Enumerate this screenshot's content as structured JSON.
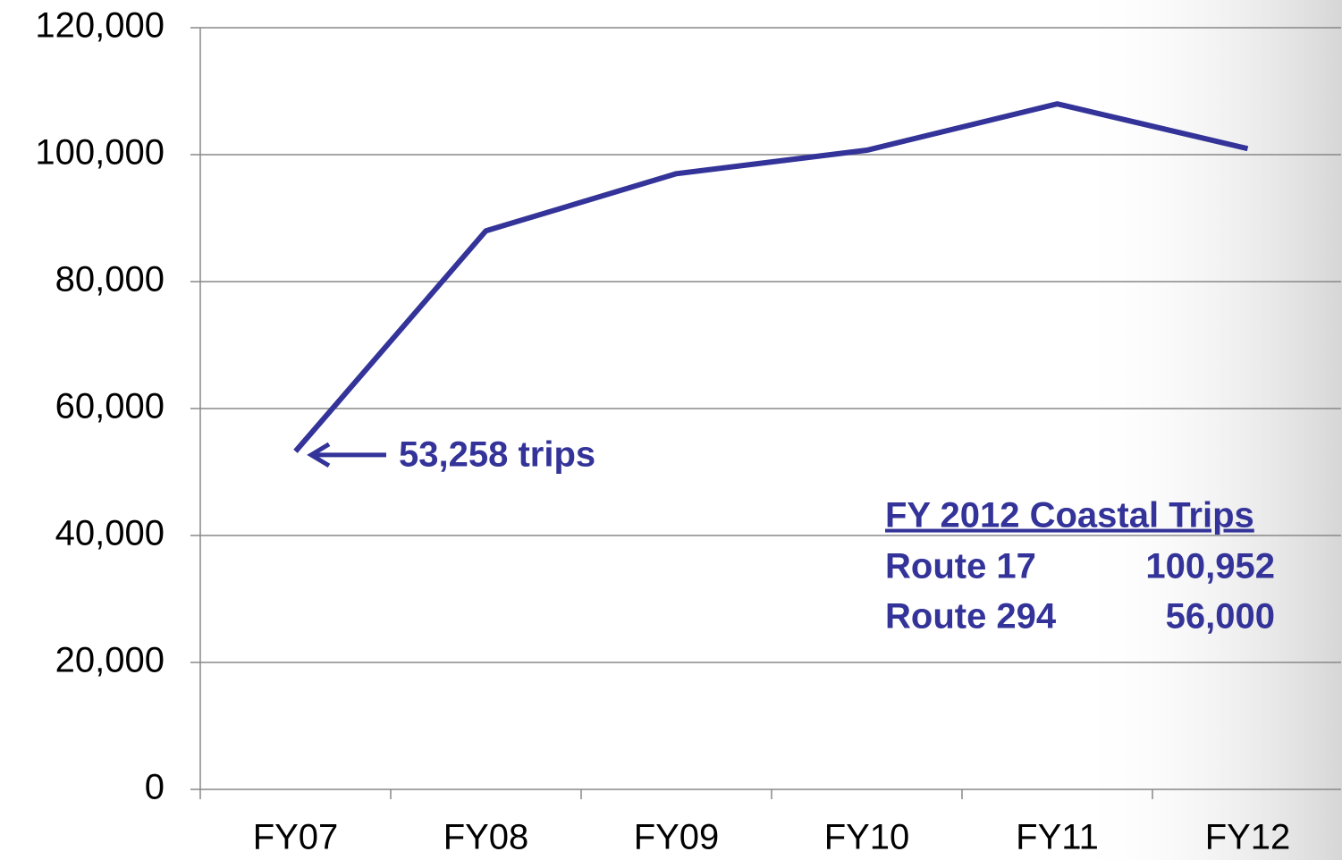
{
  "chart_data": {
    "type": "line",
    "categories": [
      "FY07",
      "FY08",
      "FY09",
      "FY10",
      "FY11",
      "FY12"
    ],
    "series": [
      {
        "color": "#333399",
        "values": [
          53258,
          88000,
          97000,
          100700,
          108000,
          100952
        ]
      }
    ],
    "ylim": [
      0,
      120000
    ],
    "yticks": [
      0,
      {
        "value": 20000,
        "label": "20,000"
      },
      {
        "value": 40000,
        "label": "40,000"
      },
      {
        "value": 60000,
        "label": "60,000"
      },
      {
        "value": 80000,
        "label": "80,000"
      },
      {
        "value": 100000,
        "label": "100,000"
      },
      {
        "value": 120000,
        "label": "120,000"
      }
    ],
    "grid": true,
    "annotations": [
      {
        "text": "53,258 trips"
      }
    ],
    "summary": {
      "title": "FY 2012 Coastal Trips",
      "rows": [
        [
          "Route 17",
          "100,952"
        ],
        [
          "Route 294",
          "56,000"
        ]
      ]
    }
  }
}
